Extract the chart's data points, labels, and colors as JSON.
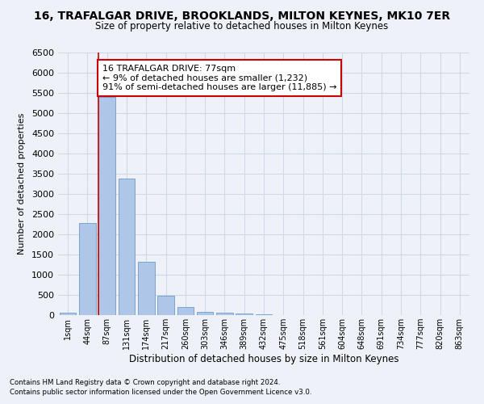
{
  "title": "16, TRAFALGAR DRIVE, BROOKLANDS, MILTON KEYNES, MK10 7ER",
  "subtitle": "Size of property relative to detached houses in Milton Keynes",
  "xlabel": "Distribution of detached houses by size in Milton Keynes",
  "ylabel": "Number of detached properties",
  "footnote1": "Contains HM Land Registry data © Crown copyright and database right 2024.",
  "footnote2": "Contains public sector information licensed under the Open Government Licence v3.0.",
  "categories": [
    "1sqm",
    "44sqm",
    "87sqm",
    "131sqm",
    "174sqm",
    "217sqm",
    "260sqm",
    "303sqm",
    "346sqm",
    "389sqm",
    "432sqm",
    "475sqm",
    "518sqm",
    "561sqm",
    "604sqm",
    "648sqm",
    "691sqm",
    "734sqm",
    "777sqm",
    "820sqm",
    "863sqm"
  ],
  "values": [
    70,
    2280,
    5400,
    3380,
    1320,
    480,
    200,
    90,
    55,
    50,
    20,
    10,
    5,
    3,
    2,
    1,
    1,
    1,
    0,
    0,
    0
  ],
  "bar_color": "#aec6e8",
  "bar_edge_color": "#5a8fc0",
  "grid_color": "#d0d8e8",
  "background_color": "#eef2f8",
  "vline_color": "#cc0000",
  "annotation_text": "16 TRAFALGAR DRIVE: 77sqm\n← 9% of detached houses are smaller (1,232)\n91% of semi-detached houses are larger (11,885) →",
  "annotation_box_color": "#ffffff",
  "annotation_box_edge": "#cc0000",
  "ylim": [
    0,
    6500
  ],
  "yticks": [
    0,
    500,
    1000,
    1500,
    2000,
    2500,
    3000,
    3500,
    4000,
    4500,
    5000,
    5500,
    6000,
    6500
  ]
}
